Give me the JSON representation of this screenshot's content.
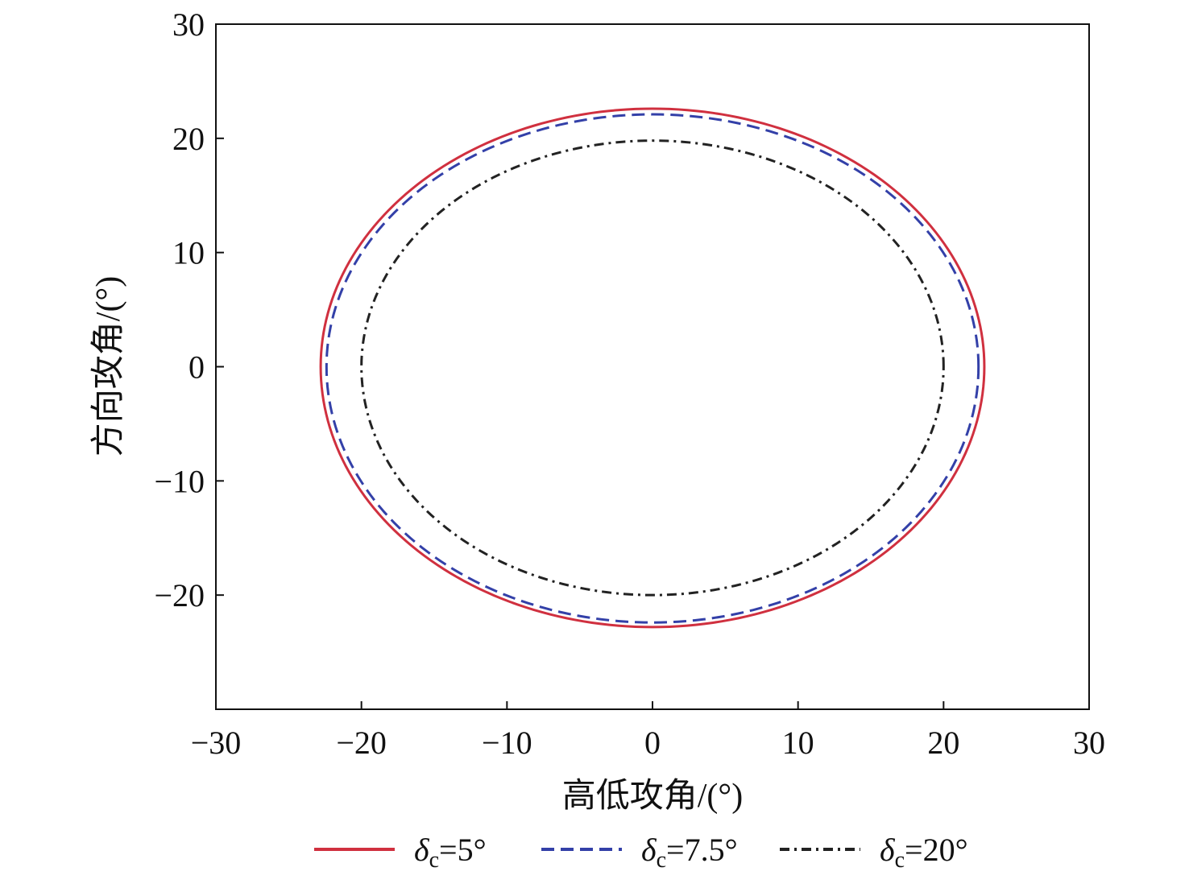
{
  "chart_data": {
    "type": "line",
    "xlabel": "高低攻角/(°)",
    "ylabel": "方向攻角/(°)",
    "xlim": [
      -30,
      30
    ],
    "ylim": [
      -30,
      30
    ],
    "xticks": [
      -30,
      -20,
      -10,
      0,
      10,
      20,
      30
    ],
    "yticks": [
      -20,
      -10,
      0,
      10,
      20,
      30
    ],
    "xtick_labels": [
      "−30",
      "−20",
      "−10",
      "0",
      "10",
      "20",
      "30"
    ],
    "ytick_labels": [
      "−20",
      "−10",
      "0",
      "10",
      "20",
      "30"
    ],
    "grid": false,
    "legend_position": "bottom",
    "series": [
      {
        "symbol": "δ",
        "subscript": "c",
        "value_text": "=5°",
        "color": "#d0303f",
        "style": "solid",
        "shape": "ellipse",
        "x_semi_axis_neg": 22.8,
        "x_semi_axis_pos": 22.8,
        "y_semi_axis_pos": 22.6,
        "y_semi_axis_neg": 22.8
      },
      {
        "symbol": "δ",
        "subscript": "c",
        "value_text": "=7.5°",
        "color": "#3340a8",
        "style": "dashed",
        "shape": "ellipse",
        "x_semi_axis_neg": 22.4,
        "x_semi_axis_pos": 22.4,
        "y_semi_axis_pos": 22.1,
        "y_semi_axis_neg": 22.4
      },
      {
        "symbol": "δ",
        "subscript": "c",
        "value_text": "=20°",
        "color": "#222222",
        "style": "dashdot",
        "shape": "ellipse",
        "x_semi_axis_neg": 20.0,
        "x_semi_axis_pos": 20.0,
        "y_semi_axis_pos": 19.8,
        "y_semi_axis_neg": 20.0
      }
    ]
  }
}
